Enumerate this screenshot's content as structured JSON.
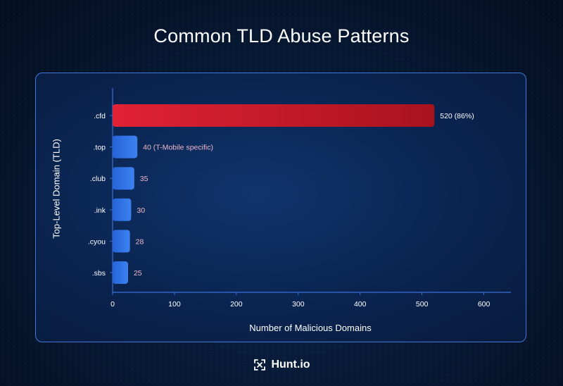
{
  "title": "Common TLD Abuse Patterns",
  "brand": {
    "name": "Hunt.io",
    "icon": "hunt-logo-icon"
  },
  "colors": {
    "highlight": "#d61f2f",
    "bar": "#2f6de0",
    "axis": "#3b6fd6",
    "label": "#f0b8c8"
  },
  "chart_data": {
    "type": "bar",
    "orientation": "horizontal",
    "categories": [
      ".cfd",
      ".top",
      ".club",
      ".ink",
      ".cyou",
      ".sbs"
    ],
    "values": [
      520,
      40,
      35,
      30,
      28,
      25
    ],
    "data_labels": [
      "520 (86%)",
      "40 (T-Mobile specific)",
      "35",
      "30",
      "28",
      "25"
    ],
    "xlabel": "Number of Malicious Domains",
    "ylabel": "Top-Level Domain (TLD)",
    "xlim": [
      0,
      640
    ],
    "xticks": [
      0,
      100,
      200,
      300,
      400,
      500,
      600
    ],
    "grid": false,
    "highlight_category": ".cfd"
  }
}
